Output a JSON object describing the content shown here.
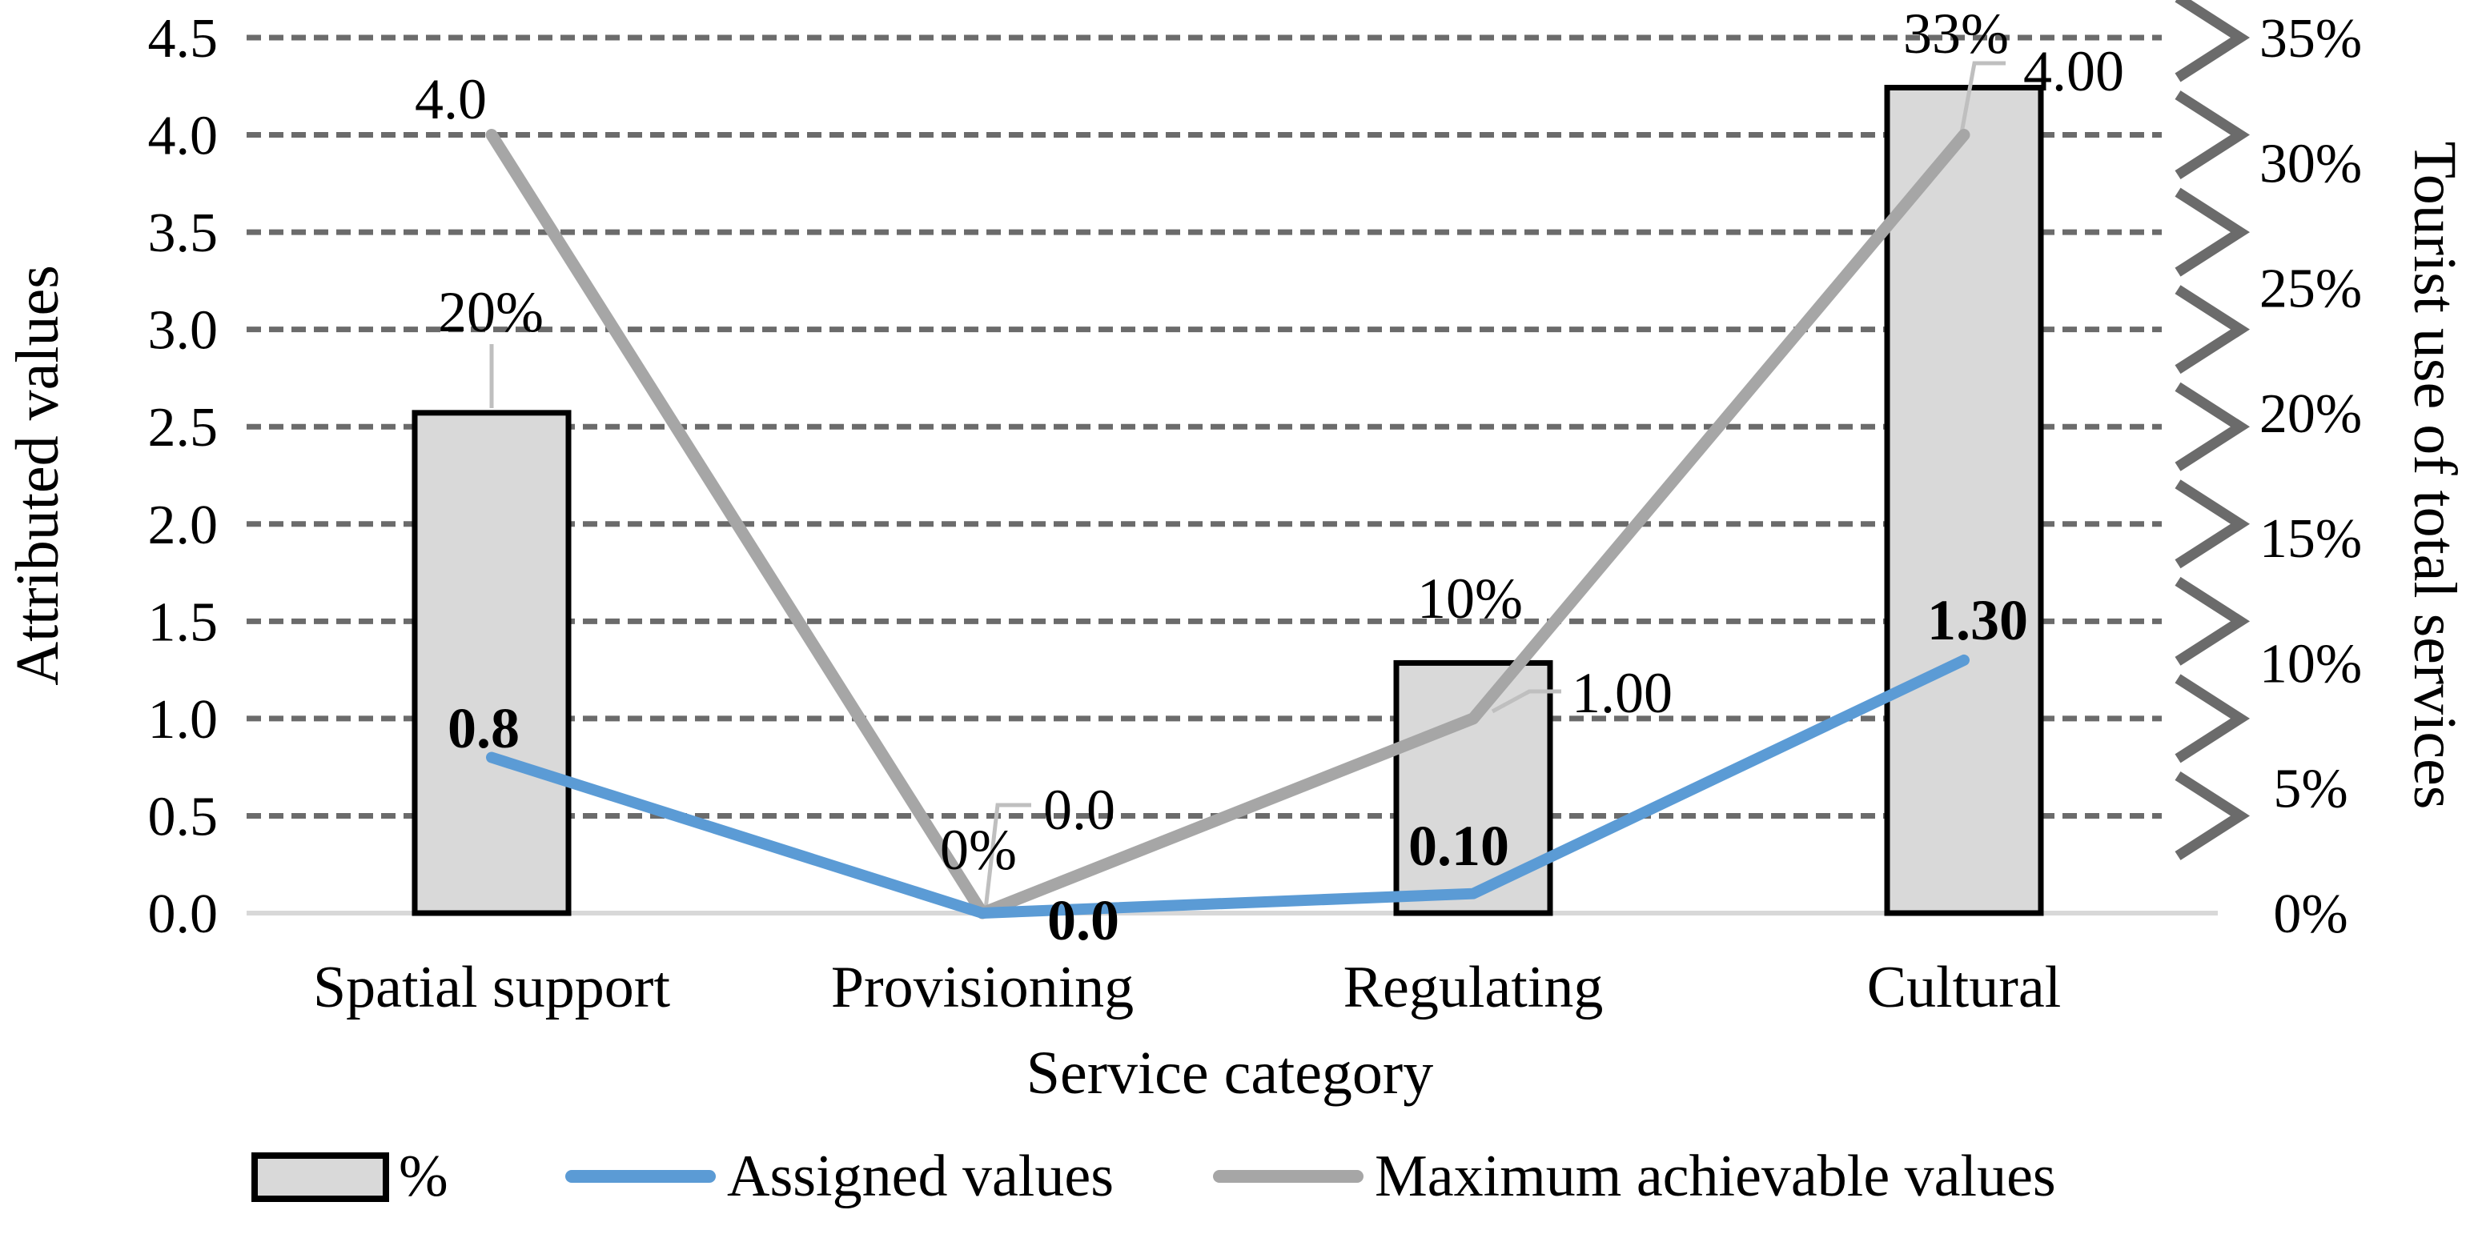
{
  "chart_data": {
    "type": "combo",
    "categories": [
      "Spatial support",
      "Provisioning",
      "Regulating",
      "Cultural"
    ],
    "xlabel": "Service category",
    "left_axis": {
      "title": "Attributed values",
      "min": 0.0,
      "max": 4.5,
      "step": 0.5,
      "tick_labels": [
        "0.0",
        "0.5",
        "1.0",
        "1.5",
        "2.0",
        "2.5",
        "3.0",
        "3.5",
        "4.0",
        "4.5"
      ]
    },
    "right_axis": {
      "title": "Tourist use of total services",
      "min": 0,
      "max": 35,
      "step": 5,
      "tick_labels": [
        "0%",
        "5%",
        "10%",
        "15%",
        "20%",
        "25%",
        "30%",
        "35%"
      ]
    },
    "grid": {
      "style": "dashed",
      "arrowheads_right": true
    },
    "series": [
      {
        "name": "%",
        "type": "bar",
        "axis": "right",
        "values_pct": [
          20,
          0,
          10,
          33
        ],
        "data_labels": [
          "20%",
          "0%",
          "10%",
          "33%"
        ],
        "fill": "#d9d9d9",
        "border": "#000000",
        "label_weight": "normal"
      },
      {
        "name": "Assigned values",
        "type": "line",
        "axis": "left",
        "values": [
          0.8,
          0.0,
          0.1,
          1.3
        ],
        "data_labels": [
          "0.8",
          "0.0",
          "0.10",
          "1.30"
        ],
        "color": "#5b9bd5",
        "label_weight": "bold"
      },
      {
        "name": "Maximum achievable values",
        "type": "line",
        "axis": "left",
        "values": [
          4.0,
          0.0,
          1.0,
          4.0
        ],
        "data_labels": [
          "4.0",
          "0.0",
          "1.00",
          "4.00"
        ],
        "color": "#a6a6a6",
        "label_weight": "normal"
      }
    ],
    "legend": {
      "position": "bottom",
      "items": [
        "%",
        "Assigned values",
        "Maximum achievable values"
      ]
    }
  },
  "colors": {
    "grid": "#6b6b6b",
    "baseline": "#d8d8d8",
    "leader": "#bfbfbf",
    "bar_fill": "#d9d9d9",
    "bar_border": "#000000",
    "blue_line": "#5b9bd5",
    "gray_line": "#a6a6a6",
    "text": "#000000"
  }
}
